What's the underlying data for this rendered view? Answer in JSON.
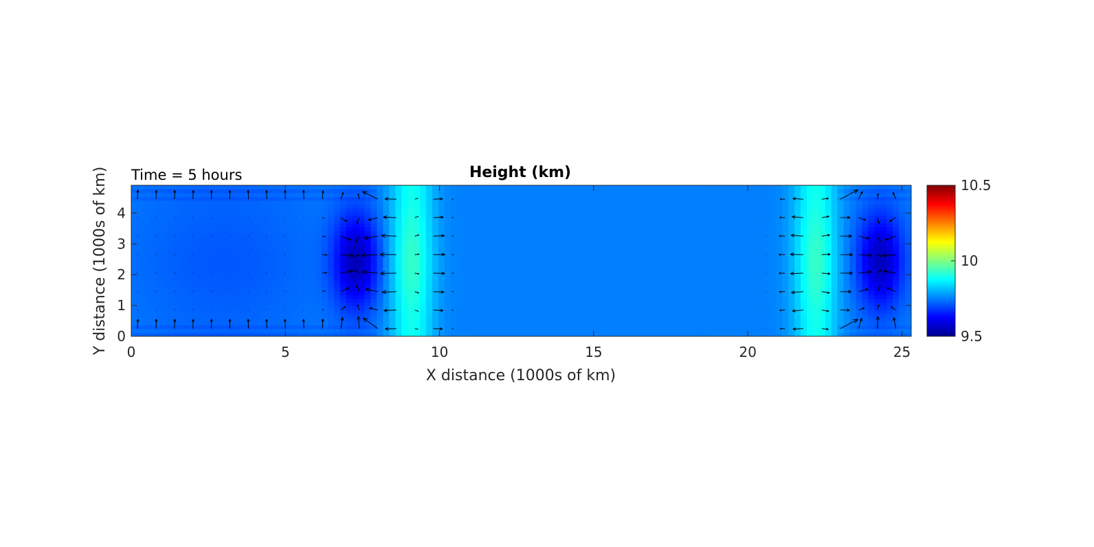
{
  "chart_data": {
    "type": "heatmap",
    "title": "Height (km)",
    "annotation": "Time = 5 hours",
    "xlabel": "X distance (1000s of km)",
    "ylabel": "Y distance (1000s of km)",
    "xlim": [
      0,
      25.3
    ],
    "ylim": [
      0,
      4.9
    ],
    "xticks": [
      "0",
      "5",
      "10",
      "15",
      "20",
      "25"
    ],
    "yticks": [
      "0",
      "1",
      "2",
      "3",
      "4"
    ],
    "colormap": "jet",
    "clim": [
      9.5,
      10.5
    ],
    "colorbar_ticks": [
      "9.5",
      "10",
      "10.5"
    ],
    "background_height": 9.75,
    "features": [
      {
        "kind": "depression",
        "x_center": 7.3,
        "y_center": 2.45,
        "min_height": 9.55
      },
      {
        "kind": "ridge",
        "x_center": 9.1,
        "max_height": 9.93
      },
      {
        "kind": "ridge",
        "x_center": 22.2,
        "max_height": 9.93
      },
      {
        "kind": "depression",
        "x_center": 24.3,
        "y_center": 2.45,
        "min_height": 9.55
      }
    ],
    "vector_field": "wind velocity arrows (quiver)"
  }
}
